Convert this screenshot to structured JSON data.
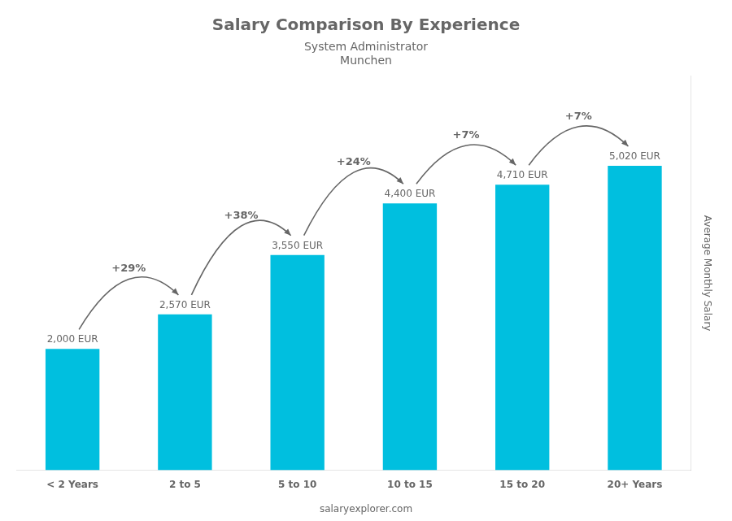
{
  "chart_data": {
    "type": "bar",
    "title": "Salary Comparison By Experience",
    "subtitle": [
      "System Administrator",
      "Munchen"
    ],
    "categories": [
      "< 2 Years",
      "2 to 5",
      "5 to 10",
      "10 to 15",
      "15 to 20",
      "20+ Years"
    ],
    "values": [
      2000,
      2570,
      3550,
      4400,
      4710,
      5020
    ],
    "value_labels": [
      "2,000 EUR",
      "2,570 EUR",
      "3,550 EUR",
      "4,400 EUR",
      "4,710 EUR",
      "5,020 EUR"
    ],
    "data_labels": true,
    "color": "#00bfdf",
    "annotations": [
      "+29%",
      "+38%",
      "+24%",
      "+7%",
      "+7%"
    ],
    "ylabel": "Average Monthly Salary",
    "ylim": [
      0,
      6500
    ],
    "yticks": [],
    "tick_labels": "x",
    "grid": false,
    "watermark": "salaryexplorer.com"
  }
}
